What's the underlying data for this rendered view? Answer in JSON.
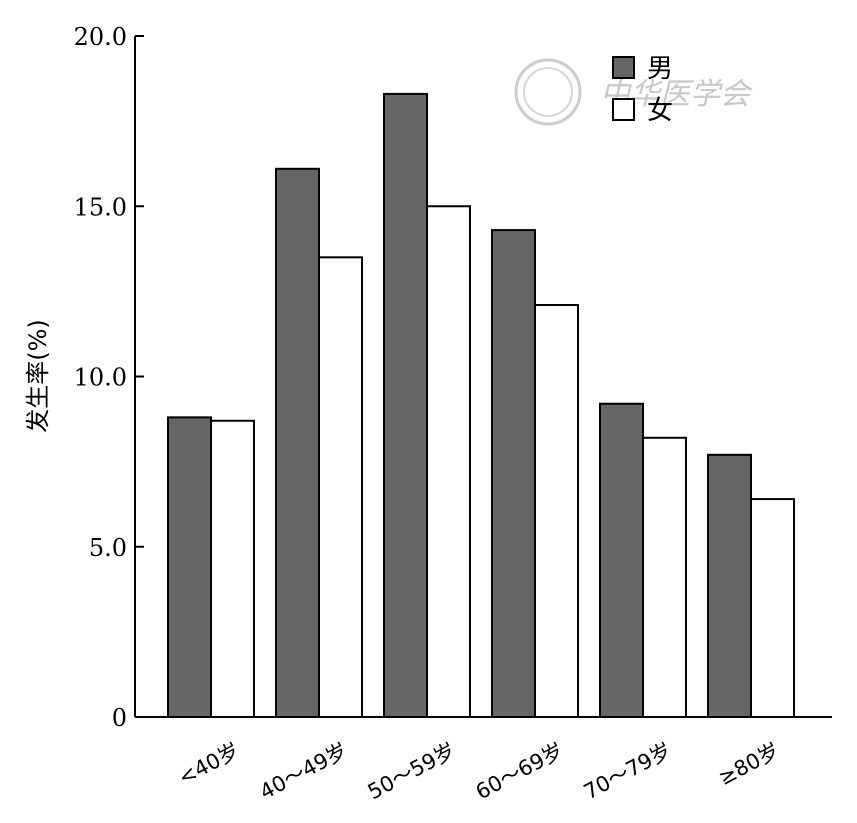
{
  "chart_data": {
    "type": "bar",
    "ylabel": "发生率(%)",
    "xlabel": "",
    "ylim": [
      0,
      20
    ],
    "yticks": [
      "0",
      "5.0",
      "10.0",
      "15.0",
      "20.0"
    ],
    "ytick_values": [
      0,
      5,
      10,
      15,
      20
    ],
    "categories": [
      "<40岁",
      "40～49岁",
      "50～59岁",
      "60～69岁",
      "70～79岁",
      "≥80岁"
    ],
    "series": [
      {
        "name": "男",
        "values": [
          8.8,
          16.1,
          18.3,
          14.3,
          9.2,
          7.7
        ],
        "color": "#666666"
      },
      {
        "name": "女",
        "values": [
          8.7,
          13.5,
          15.0,
          12.1,
          8.2,
          6.4
        ],
        "color": "#ffffff"
      }
    ],
    "legend_position": "top-right",
    "grid": false
  },
  "watermark": {
    "text": "中华医学会"
  }
}
